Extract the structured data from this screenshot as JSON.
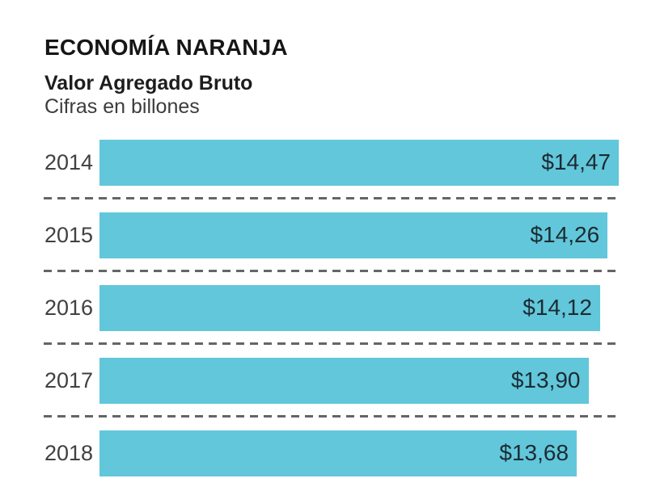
{
  "header": {
    "title": "ECONOMÍA NARANJA",
    "subtitle": "Valor Agregado Bruto",
    "note": "Cifras en billones"
  },
  "chart_data": {
    "type": "bar",
    "orientation": "horizontal",
    "title": "ECONOMÍA NARANJA",
    "subtitle": "Valor Agregado Bruto",
    "units_note": "Cifras en billones",
    "categories": [
      "2014",
      "2015",
      "2016",
      "2017",
      "2018"
    ],
    "values": [
      14.47,
      14.26,
      14.12,
      13.9,
      13.68
    ],
    "value_labels": [
      "$14,47",
      "$14,26",
      "$14,12",
      "$13,90",
      "$13,68"
    ],
    "xlim": [
      4.71,
      14.47
    ],
    "bar_color": "#62C7DA",
    "value_label_color": "#1c2b33",
    "separator_style": "dashed",
    "grid": false,
    "legend": false
  }
}
